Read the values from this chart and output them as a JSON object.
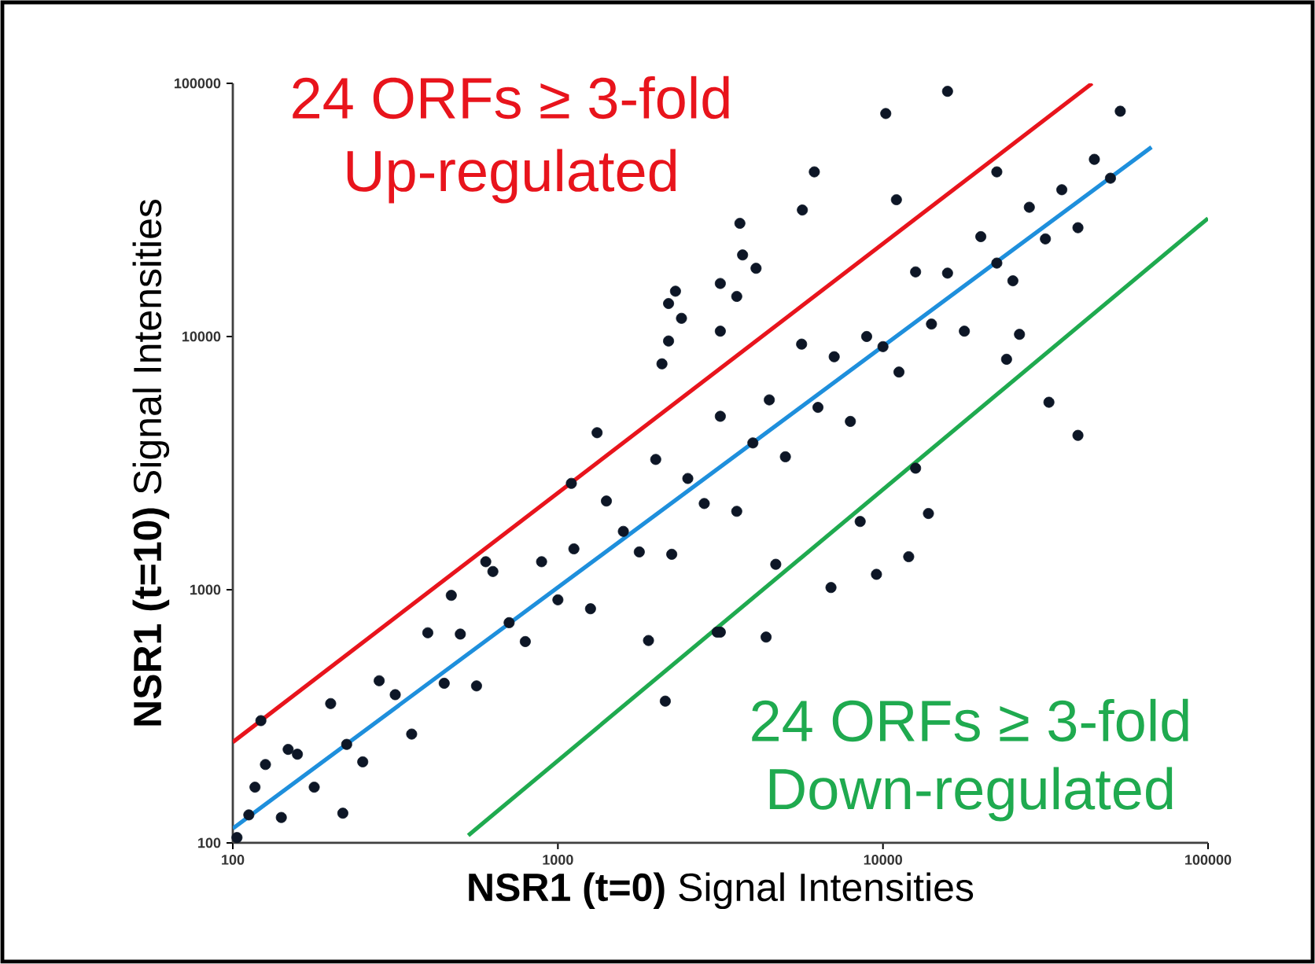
{
  "chart_data": {
    "type": "scatter",
    "xlabel": "**NSR1 (t=0)** Signal Intensities",
    "ylabel": "**NSR1 (t=10)** Signal Intensities",
    "annotations": [
      "24 ORFs ≥ 3-fold",
      "Up-regulated",
      "24 ORFs ≥ 3-fold",
      "Down-regulated"
    ],
    "log": "xy",
    "xlim": [
      100,
      100000
    ],
    "ylim": [
      100,
      100000
    ],
    "xticks": [
      100,
      1000,
      10000,
      100000
    ],
    "yticks": [
      100,
      1000,
      10000,
      100000
    ],
    "series": [
      {
        "color": "#0d1626",
        "marker": "circle",
        "x": [
          112,
          126,
          141,
          158,
          178,
          200,
          224,
          251,
          282,
          316,
          355,
          398,
          447,
          501,
          562,
          631,
          708,
          794,
          891,
          1000,
          1120,
          1260,
          1410,
          1590,
          1780,
          2000,
          2240,
          2510,
          2820,
          3160,
          3550,
          3980,
          4470,
          5010,
          5620,
          6310,
          7080,
          7940,
          8910,
          10000,
          11200,
          12600,
          14100,
          15800,
          17800,
          20000,
          22400,
          25100,
          28200,
          31600,
          35500,
          39800,
          44700,
          50100,
          3630,
          3700,
          4070,
          2300,
          2190,
          2400,
          2190,
          3160,
          3550,
          3160,
          2090,
          1320,
          15800,
          10200,
          6150,
          5650,
          53700,
          11000,
          22400,
          32400,
          39800,
          26300,
          24000,
          12600,
          13800,
          8510,
          12000,
          9550,
          6920,
          4370,
          3160,
          4680,
          2140,
          3090,
          1900,
          600,
          470,
          122,
          117,
          103,
          148,
          1100,
          218
        ],
        "values": [
          129,
          204,
          126,
          224,
          166,
          355,
          245,
          209,
          437,
          385,
          269,
          676,
          427,
          668,
          417,
          1180,
          741,
          624,
          1290,
          912,
          1450,
          841,
          2240,
          1700,
          1410,
          3270,
          1380,
          2750,
          2190,
          4840,
          2040,
          3800,
          5620,
          3350,
          9330,
          5250,
          8320,
          4620,
          10000,
          9120,
          7240,
          18000,
          11200,
          17800,
          10500,
          24800,
          19500,
          16600,
          32400,
          24300,
          38000,
          26900,
          50100,
          42200,
          28000,
          21000,
          18600,
          15100,
          13500,
          11800,
          9600,
          16200,
          14400,
          10500,
          7800,
          4170,
          93000,
          76000,
          44700,
          31600,
          77600,
          34700,
          44700,
          5500,
          4070,
          10200,
          8130,
          3020,
          2000,
          1860,
          1350,
          1150,
          1020,
          650,
          680,
          1260,
          363,
          680,
          630,
          1290,
          950,
          304,
          166,
          105,
          234,
          2630,
          131
        ]
      },
      {
        "type": "line",
        "color": "#e8141c",
        "marker": "none",
        "x": [
          100,
          44000
        ],
        "values": [
          250,
          100000
        ]
      },
      {
        "type": "line",
        "color": "#1e8fdc",
        "marker": "none",
        "x": [
          100,
          67000
        ],
        "values": [
          114,
          56000
        ]
      },
      {
        "type": "line",
        "color": "#1faa4f",
        "marker": "none",
        "x": [
          530,
          100000
        ],
        "values": [
          107,
          29300
        ]
      }
    ]
  }
}
